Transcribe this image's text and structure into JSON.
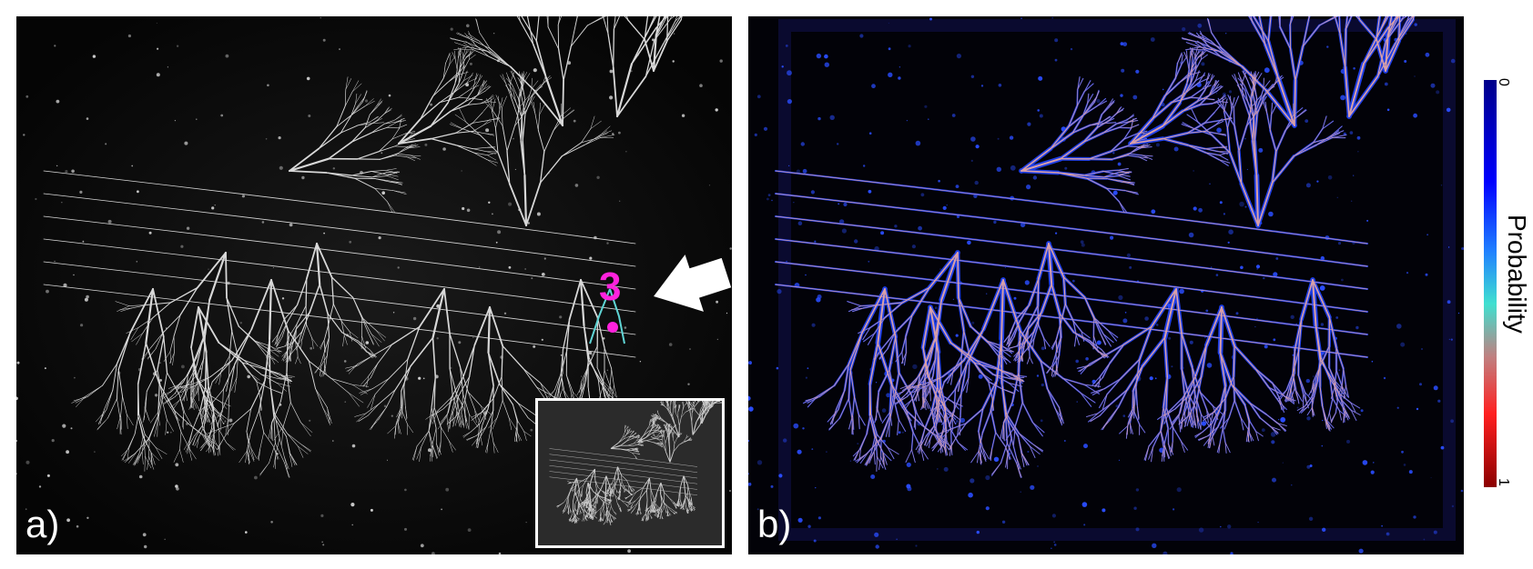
{
  "panels": {
    "a": {
      "label": "a)"
    },
    "b": {
      "label": "b)"
    }
  },
  "annotation": {
    "marker_text": "3",
    "marker_color": "#ff22dd",
    "arrow_color": "#ffffff"
  },
  "colorbar": {
    "title": "Probability",
    "min_label": "0",
    "max_label": "1",
    "colors": [
      "#00008a",
      "#0000ff",
      "#40e0d0",
      "#ff2020",
      "#8b0000"
    ]
  }
}
